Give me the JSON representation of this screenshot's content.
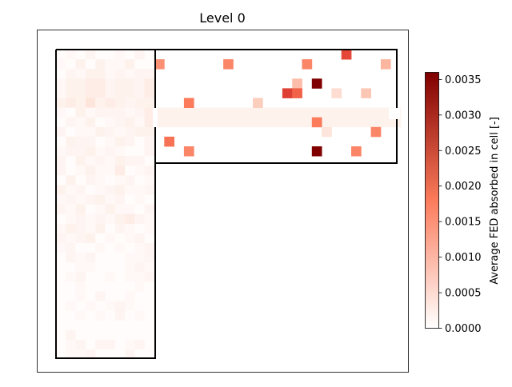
{
  "chart_data": {
    "type": "heatmap",
    "title": "Level 0",
    "colorbar": {
      "label": "Average FED absorbed in cell [-]",
      "range": [
        0,
        0.0036
      ],
      "ticks": [
        "0.0000",
        "0.0005",
        "0.0010",
        "0.0015",
        "0.0020",
        "0.0025",
        "0.0030",
        "0.0035"
      ],
      "colormap": "Reds",
      "color_low": "#ffffff",
      "color_mid": "#fb7b5b",
      "color_high": "#800000"
    },
    "cell_units": "grid cells (col, row) in a 35 x 32 domain",
    "outline_color": "#000000",
    "vertical_wing": {
      "cols": [
        0,
        9
      ],
      "rows": [
        0,
        31
      ],
      "values": [
        [
          0.0001,
          0.0002,
          0.0001,
          0.0003,
          0.0001,
          0.0001,
          0.0002,
          0.0001,
          0.0003,
          0.0001
        ],
        [
          0.0002,
          0.0001,
          0.0004,
          0.0001,
          0.0004,
          0.0002,
          0.0002,
          0.0004,
          0.0001,
          0.0001
        ],
        [
          0.0001,
          0.0003,
          0.0002,
          0.0004,
          0.0004,
          0.0002,
          0.0003,
          0.0002,
          0.0003,
          0.0003
        ],
        [
          0.0002,
          0.0004,
          0.0004,
          0.0005,
          0.0005,
          0.0003,
          0.0004,
          0.0004,
          0.0003,
          0.0005
        ],
        [
          0.0002,
          0.0004,
          0.0004,
          0.0005,
          0.0005,
          0.0003,
          0.0004,
          0.0004,
          0.0003,
          0.0005
        ],
        [
          0.0004,
          0.0005,
          0.0004,
          0.0006,
          0.0004,
          0.0005,
          0.0004,
          0.0003,
          0.0004,
          0.0004
        ],
        [
          0.0002,
          0.0001,
          0.0004,
          0.0002,
          0.0003,
          0.0003,
          0.0003,
          0.0002,
          0.0003,
          0.0005
        ],
        [
          0.0001,
          0.0003,
          0.0002,
          0.0004,
          0.0001,
          0.0002,
          0.0003,
          0.0004,
          0.0002,
          0.0005
        ],
        [
          0.0003,
          0.0001,
          0.0002,
          0.0002,
          0.0004,
          0.0003,
          0.0002,
          0.0003,
          0.0004,
          0.0004
        ],
        [
          0.0001,
          0.0004,
          0.0003,
          0.0003,
          0.0001,
          0.0002,
          0.0004,
          0.0003,
          0.0001,
          0.0003
        ],
        [
          0.0002,
          0.0003,
          0.0003,
          0.0004,
          0.0002,
          0.0003,
          0.0002,
          0.0001,
          0.0001,
          0.0003
        ],
        [
          0.0003,
          0.0001,
          0.0004,
          0.0002,
          0.0003,
          0.0002,
          0.0004,
          0.0003,
          0.0003,
          0.0001
        ],
        [
          0.0003,
          0.0001,
          0.0002,
          0.0004,
          0.0002,
          0.0002,
          0.0005,
          0.0001,
          0.0002,
          0.0003
        ],
        [
          0.0001,
          0.0004,
          0.0001,
          0.0003,
          0.0002,
          0.0001,
          0.0002,
          0.0003,
          0.0001,
          0.0002
        ],
        [
          0.0004,
          0.0002,
          0.0003,
          0.0001,
          0.0002,
          0.0003,
          0.0004,
          0.0002,
          0.0002,
          0.0003
        ],
        [
          0.0002,
          0.0003,
          0.0002,
          0.0003,
          0.0004,
          0.0002,
          0.0003,
          0.0001,
          0.0002,
          0.0001
        ],
        [
          0.0003,
          0.0002,
          0.0004,
          0.0001,
          0.0002,
          0.0004,
          0.0002,
          0.0002,
          0.0001,
          0.0003
        ],
        [
          0.0001,
          0.0002,
          0.0003,
          0.0002,
          0.0003,
          0.0002,
          0.0004,
          0.0005,
          0.0003,
          0.0002
        ],
        [
          0.0002,
          0.0004,
          0.0003,
          0.0002,
          0.0004,
          0.0001,
          0.0003,
          0.0002,
          0.0001,
          0.0002
        ],
        [
          0.0003,
          0.0002,
          0.0003,
          0.0004,
          0.0001,
          0.0002,
          0.0001,
          0.0002,
          0.0003,
          0.0001
        ],
        [
          0.0002,
          0.0003,
          0.0001,
          0.0001,
          0.0002,
          0.0001,
          0.0002,
          0.0001,
          0.0002,
          0.0003
        ],
        [
          0.0001,
          0.0003,
          0.0002,
          0.0003,
          0.0001,
          0.0001,
          0.0001,
          0.0002,
          0.0002,
          0.0003
        ],
        [
          0.0001,
          0.0001,
          0.0002,
          0.0002,
          0.0001,
          0.0001,
          0.0001,
          0.0002,
          0.0003,
          0.0002
        ],
        [
          0.0001,
          0.0002,
          0.0003,
          0.0001,
          0.0001,
          0.0002,
          0.0001,
          0.0002,
          0.0002,
          0.0003
        ],
        [
          0.0001,
          0.0001,
          0.0002,
          0.0001,
          0.0001,
          0.0001,
          0.0001,
          0.0001,
          0.0002,
          0.0001
        ],
        [
          0.0001,
          0.0001,
          0.0002,
          0.0001,
          0.0003,
          0.0001,
          0.0001,
          0.0002,
          0.0001,
          0.0001
        ],
        [
          0.0001,
          0.0002,
          0.0001,
          0.0002,
          0.0001,
          0.0002,
          0.0003,
          0.0002,
          0.0001,
          0.0001
        ],
        [
          0.0001,
          0.0001,
          0.0002,
          0.0001,
          0.0002,
          0.0001,
          0.0003,
          0.0001,
          0.0002,
          0.0001
        ],
        [
          0.0001,
          0.0001,
          0.0001,
          0.0001,
          0.0001,
          0.0001,
          0.0001,
          0.0001,
          0.0001,
          0.0001
        ],
        [
          0.0001,
          0.0003,
          0.0001,
          0.0001,
          0.0001,
          0.0001,
          0.0001,
          0.0001,
          0.0001,
          0.0001
        ],
        [
          0.0001,
          0.0002,
          0.0003,
          0.0001,
          0.0003,
          0.0003,
          0.0001,
          0.0002,
          0.0003,
          0.0001
        ],
        [
          0.0001,
          0.0002,
          0.0002,
          0.0003,
          0.0001,
          0.0001,
          0.0001,
          0.0003,
          0.0001,
          0.0001
        ]
      ]
    },
    "horizontal_wing": {
      "cols": [
        10,
        34
      ],
      "rows": [
        0,
        11
      ],
      "hot_cells": [
        {
          "col": 29,
          "row": 0,
          "value": 0.0024
        },
        {
          "col": 10,
          "row": 1,
          "value": 0.0016
        },
        {
          "col": 17,
          "row": 1,
          "value": 0.0017
        },
        {
          "col": 25,
          "row": 1,
          "value": 0.0017
        },
        {
          "col": 33,
          "row": 1,
          "value": 0.0012
        },
        {
          "col": 24,
          "row": 3,
          "value": 0.0011
        },
        {
          "col": 26,
          "row": 3,
          "value": 0.0036
        },
        {
          "col": 23,
          "row": 4,
          "value": 0.0025
        },
        {
          "col": 24,
          "row": 4,
          "value": 0.0021
        },
        {
          "col": 28,
          "row": 4,
          "value": 0.0007
        },
        {
          "col": 31,
          "row": 4,
          "value": 0.001
        },
        {
          "col": 13,
          "row": 5,
          "value": 0.0018
        },
        {
          "col": 20,
          "row": 5,
          "value": 0.0009
        },
        {
          "col": 26,
          "row": 7,
          "value": 0.0018
        },
        {
          "col": 27,
          "row": 8,
          "value": 0.0006
        },
        {
          "col": 32,
          "row": 8,
          "value": 0.0017
        },
        {
          "col": 11,
          "row": 9,
          "value": 0.0019
        },
        {
          "col": 13,
          "row": 10,
          "value": 0.0017
        },
        {
          "col": 26,
          "row": 10,
          "value": 0.0036
        },
        {
          "col": 30,
          "row": 10,
          "value": 0.0017
        }
      ],
      "corridor_rows": [
        6,
        7
      ],
      "corridor_value": 0.0004,
      "background_value": 5e-05
    }
  }
}
